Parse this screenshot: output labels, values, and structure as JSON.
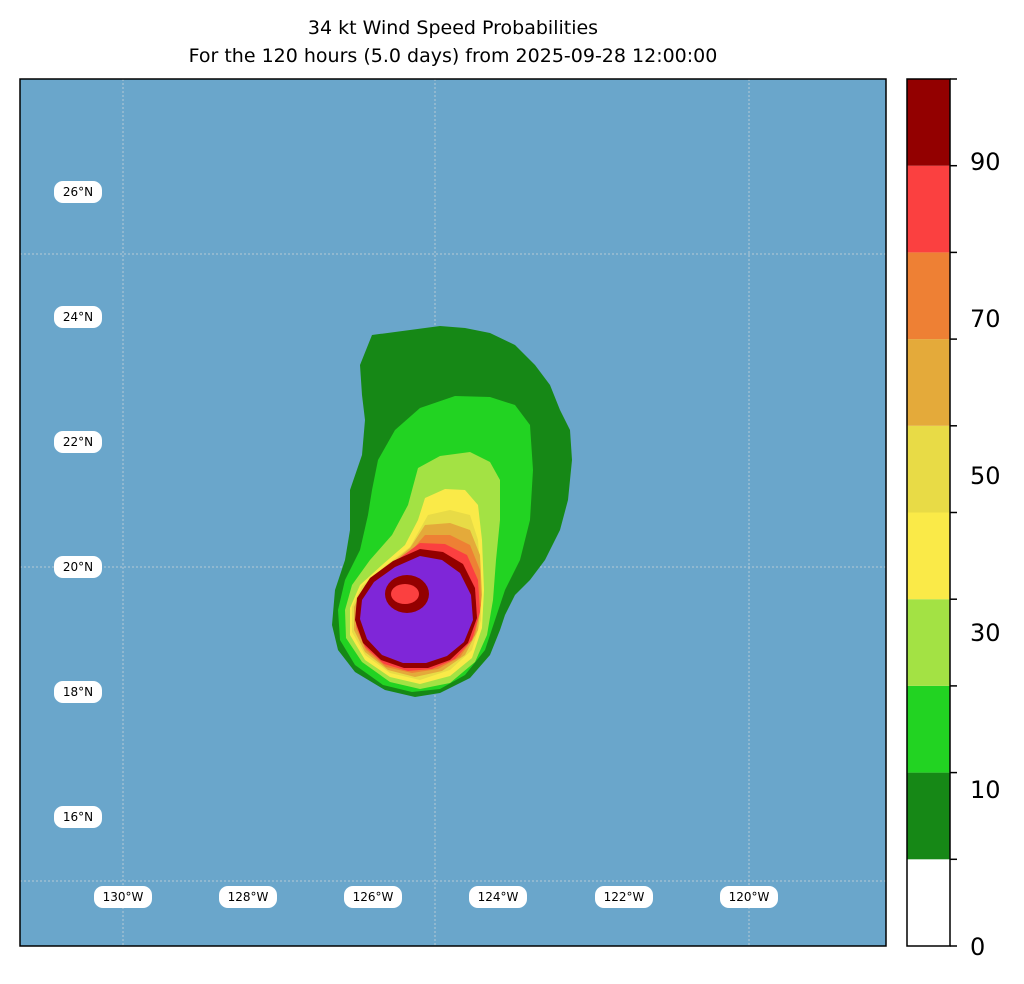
{
  "title": {
    "line1": "34 kt Wind Speed Probabilities",
    "line2": "For the 120 hours (5.0 days) from 2025-09-28 12:00:00"
  },
  "colors": {
    "ocean": "#6aa6cb",
    "frame": "#000000",
    "levels": [
      "#ffffff",
      "#168816",
      "#22d322",
      "#a3e244",
      "#faea48",
      "#e8db46",
      "#e4aa3a",
      "#ee8034",
      "#fb4040",
      "#930000",
      "#7f26d8"
    ]
  },
  "map": {
    "lat_labels": [
      "26°N",
      "24°N",
      "22°N",
      "20°N",
      "18°N",
      "16°N"
    ],
    "lon_labels": [
      "130°W",
      "128°W",
      "126°W",
      "124°W",
      "122°W",
      "120°W"
    ]
  },
  "colorbar": {
    "range": [
      0,
      100
    ],
    "boundaries": [
      0,
      10,
      20,
      30,
      40,
      50,
      60,
      70,
      80,
      90,
      100
    ],
    "tick_labels": [
      "0",
      "10",
      "30",
      "50",
      "70",
      "90"
    ]
  }
}
